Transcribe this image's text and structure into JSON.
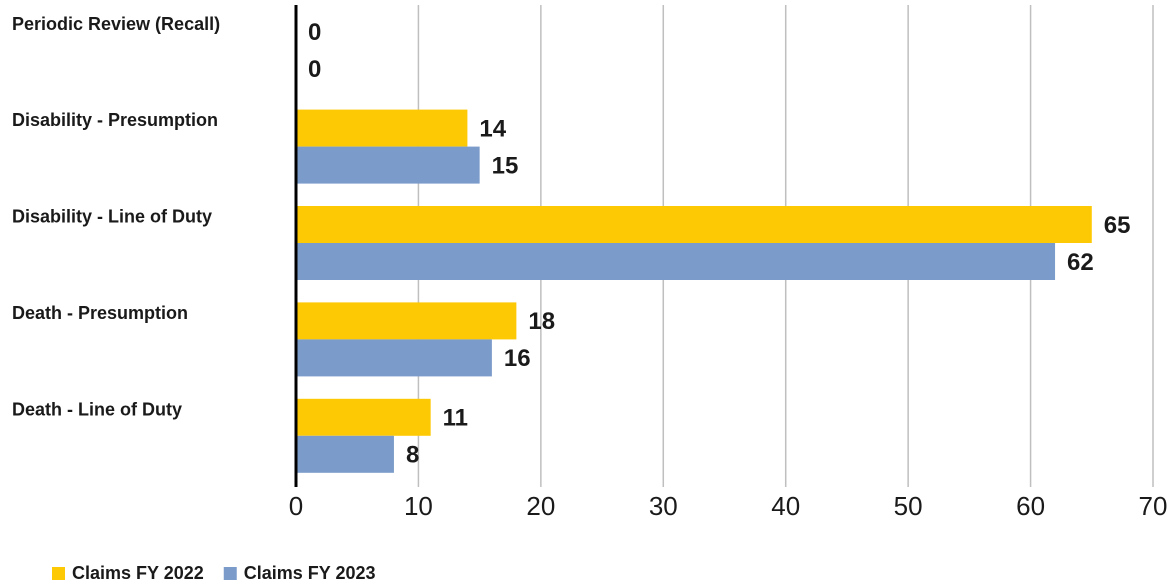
{
  "chart_data": {
    "type": "barh",
    "categories": [
      "Periodic Review (Recall)",
      "Disability - Presumption",
      "Disability - Line of Duty",
      "Death - Presumption",
      "Death - Line of Duty"
    ],
    "series": [
      {
        "name": "Claims FY 2022",
        "color": "#fdc905",
        "values": [
          0,
          14,
          65,
          18,
          11
        ]
      },
      {
        "name": "Claims FY 2023",
        "color": "#7b9bca",
        "values": [
          0,
          15,
          62,
          16,
          8
        ]
      }
    ],
    "xlim": [
      0,
      70
    ],
    "xticks": [
      0,
      10,
      20,
      30,
      40,
      50,
      60,
      70
    ],
    "grid": true,
    "legend": "bottom-left"
  }
}
